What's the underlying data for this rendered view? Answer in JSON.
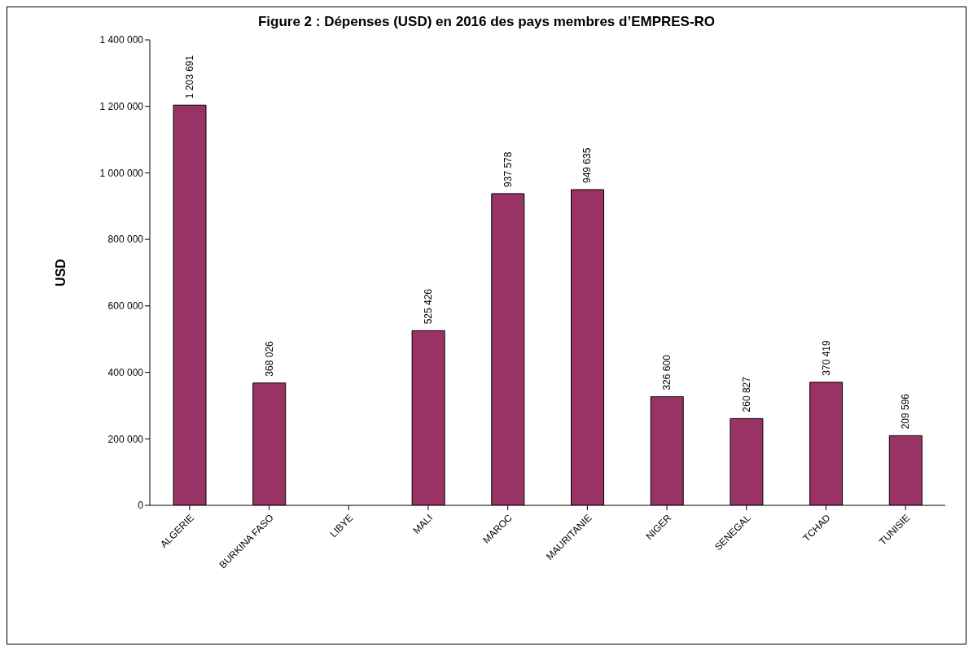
{
  "chart_data": {
    "type": "bar",
    "title": "Figure 2 : Dépenses (USD) en 2016 des pays membres d’EMPRES-RO",
    "ylabel": "USD",
    "categories": [
      "ALGERIE",
      "BURKINA FASO",
      "LIBYE",
      "MALI",
      "MAROC",
      "MAURITANIE",
      "NIGER",
      "SENEGAL",
      "TCHAD",
      "TUNISIE"
    ],
    "values": [
      1203691,
      368026,
      null,
      525426,
      937578,
      949635,
      326600,
      260827,
      370419,
      209596
    ],
    "value_labels": [
      "1 203 691",
      "368 026",
      null,
      "525 426",
      "937 578",
      "949 635",
      "326 600",
      "260 827",
      "370 419",
      "209 596"
    ],
    "color": "#993366",
    "ylim": [
      0,
      1400000
    ],
    "yticks": [
      {
        "value": 0,
        "label": "0"
      },
      {
        "value": 200000,
        "label": "200 000"
      },
      {
        "value": 400000,
        "label": "400 000"
      },
      {
        "value": 600000,
        "label": "600 000"
      },
      {
        "value": 800000,
        "label": "800 000"
      },
      {
        "value": 1000000,
        "label": "1 000 000"
      },
      {
        "value": 1200000,
        "label": "1 200 000"
      },
      {
        "value": 1400000,
        "label": "1 400 000"
      }
    ],
    "grid": false,
    "legend": false
  }
}
